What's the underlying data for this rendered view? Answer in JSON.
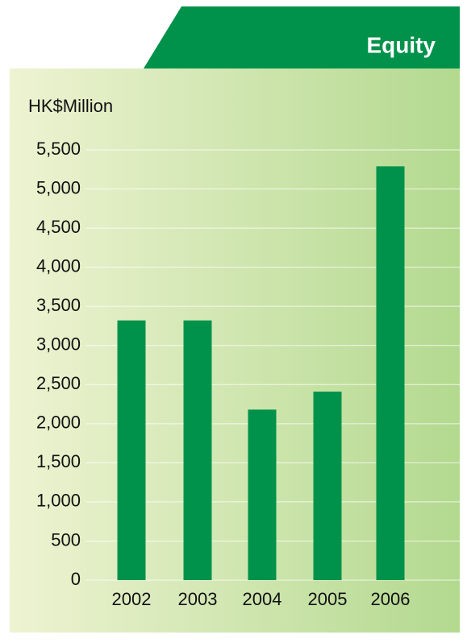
{
  "chart_data": {
    "type": "bar",
    "title": "Equity",
    "y_label": "HK$Million",
    "categories": [
      "2002",
      "2003",
      "2004",
      "2005",
      "2006"
    ],
    "values": [
      3320,
      3320,
      2180,
      2410,
      5290
    ],
    "color": "#00924a",
    "ylim": [
      0,
      5500
    ],
    "yticks": [
      0,
      500,
      {
        "value": 1000,
        "label": "1,000"
      },
      {
        "value": 1500,
        "label": "1,500"
      },
      {
        "value": 2000,
        "label": "2,000"
      },
      {
        "value": 2500,
        "label": "2,500"
      },
      {
        "value": 3000,
        "label": "3,000"
      },
      {
        "value": 3500,
        "label": "3,500"
      },
      {
        "value": 4000,
        "label": "4,000"
      },
      {
        "value": 4500,
        "label": "4,500"
      },
      {
        "value": 5000,
        "label": "5,000"
      },
      {
        "value": 5500,
        "label": "5,500"
      }
    ],
    "grid": true
  }
}
